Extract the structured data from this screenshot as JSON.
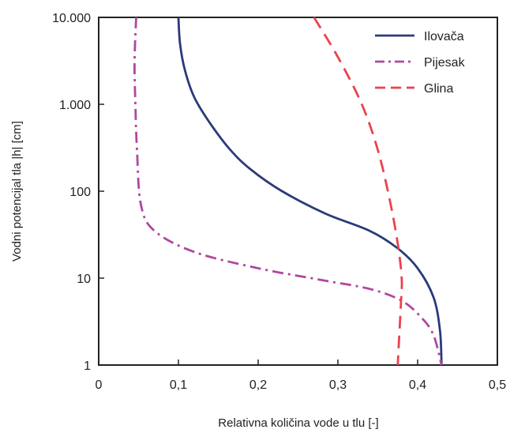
{
  "chart_data": {
    "type": "line",
    "title": "",
    "xlabel": "Relativna količina vode u tlu [-]",
    "ylabel": "Vodni potencijal tla |h| [cm]",
    "xlim": [
      0,
      0.5
    ],
    "ylim": [
      1,
      10000
    ],
    "y_scale": "log",
    "x_ticks": [
      0,
      0.1,
      0.2,
      0.3,
      0.4,
      0.5
    ],
    "x_tick_labels": [
      "0",
      "0,1",
      "0,2",
      "0,3",
      "0,4",
      "0,5"
    ],
    "y_ticks": [
      1,
      10,
      100,
      1000,
      10000
    ],
    "y_tick_labels": [
      "1",
      "10",
      "100",
      "1.000",
      "10.000"
    ],
    "grid": false,
    "legend_position": "top-right",
    "series": [
      {
        "name": "Ilovača",
        "color": "#2b3a7a",
        "style": "solid",
        "points": [
          [
            0.1,
            10000
          ],
          [
            0.102,
            5000
          ],
          [
            0.108,
            2500
          ],
          [
            0.12,
            1200
          ],
          [
            0.14,
            600
          ],
          [
            0.165,
            300
          ],
          [
            0.19,
            180
          ],
          [
            0.23,
            100
          ],
          [
            0.285,
            55
          ],
          [
            0.34,
            35
          ],
          [
            0.375,
            22
          ],
          [
            0.4,
            13
          ],
          [
            0.42,
            6
          ],
          [
            0.428,
            2.5
          ],
          [
            0.43,
            1
          ]
        ]
      },
      {
        "name": "Pijesak",
        "color": "#b0479e",
        "style": "dashdot",
        "points": [
          [
            0.047,
            10000
          ],
          [
            0.045,
            3000
          ],
          [
            0.046,
            1000
          ],
          [
            0.048,
            300
          ],
          [
            0.053,
            70
          ],
          [
            0.07,
            35
          ],
          [
            0.12,
            20
          ],
          [
            0.2,
            13
          ],
          [
            0.28,
            9.5
          ],
          [
            0.34,
            7.5
          ],
          [
            0.38,
            5.5
          ],
          [
            0.405,
            3.5
          ],
          [
            0.42,
            2.2
          ],
          [
            0.43,
            1
          ]
        ]
      },
      {
        "name": "Glina",
        "color": "#e8434f",
        "style": "dashed",
        "points": [
          [
            0.27,
            10000
          ],
          [
            0.3,
            3500
          ],
          [
            0.33,
            1000
          ],
          [
            0.35,
            300
          ],
          [
            0.365,
            80
          ],
          [
            0.375,
            25
          ],
          [
            0.38,
            10
          ],
          [
            0.379,
            5
          ],
          [
            0.375,
            1
          ]
        ]
      }
    ]
  }
}
